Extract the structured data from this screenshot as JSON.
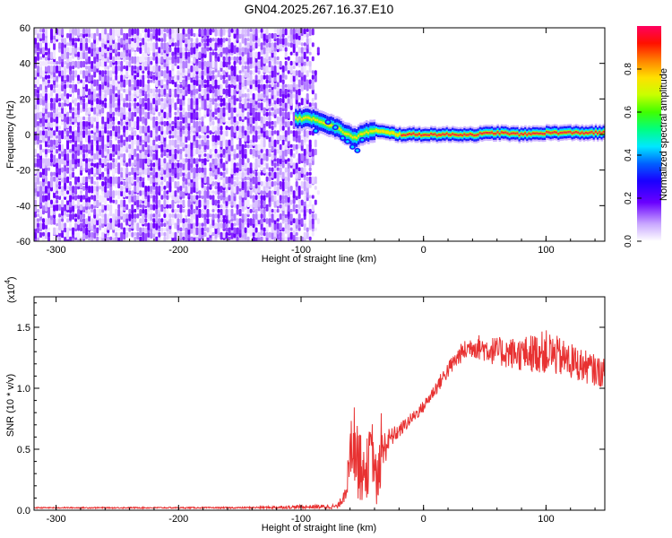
{
  "title": "GN04.2025.267.16.37.E10",
  "chart_data": [
    {
      "type": "heatmap",
      "xlabel": "Height of straight line (km)",
      "ylabel": "Frequency (Hz)",
      "xlim": [
        -318,
        148
      ],
      "ylim": [
        -60,
        60
      ],
      "xticks": [
        -300,
        -200,
        -100,
        0,
        100
      ],
      "yticks": [
        -60,
        -40,
        -20,
        0,
        20,
        40,
        60
      ],
      "noise_region_x": [
        -318,
        -82
      ],
      "signal_track": {
        "x": [
          -105,
          -90,
          -80,
          -70,
          -60,
          -55,
          -50,
          -40,
          -30,
          -20,
          -10,
          0,
          20,
          40,
          60,
          80,
          100,
          120,
          148
        ],
        "freq": [
          9,
          9,
          6,
          3,
          -1,
          -2,
          1,
          2,
          1,
          0,
          0,
          0,
          0,
          0,
          1,
          0,
          1,
          1,
          1
        ]
      },
      "colorbar": {
        "label": "Normalized spectral amplitude",
        "range": [
          0,
          1
        ],
        "ticks": [
          "0.0",
          "0.2",
          "0.4",
          "0.6",
          "0.8"
        ]
      }
    },
    {
      "type": "line",
      "xlabel": "Height of straight line (km)",
      "ylabel": "SNR (10 * v/v)",
      "scale_label": "(x10",
      "scale_exp": "4",
      "scale_close": ")",
      "xlim": [
        -318,
        148
      ],
      "ylim": [
        0,
        1.75
      ],
      "xticks": [
        -300,
        -200,
        -100,
        0,
        100
      ],
      "yticks": [
        "0.0",
        "0.5",
        "1.0",
        "1.5"
      ],
      "series": [
        {
          "name": "SNR",
          "color": "#e83232",
          "x": [
            -318,
            -150,
            -70,
            -66,
            -62,
            -58,
            -54,
            -50,
            -46,
            -42,
            -38,
            -34,
            -30,
            -26,
            -20,
            -10,
            0,
            10,
            20,
            30,
            40,
            60,
            80,
            100,
            120,
            148
          ],
          "values": [
            0.02,
            0.02,
            0.03,
            0.1,
            0.25,
            0.6,
            0.45,
            0.25,
            0.35,
            0.5,
            0.2,
            0.45,
            0.55,
            0.6,
            0.65,
            0.75,
            0.85,
            1.0,
            1.15,
            1.28,
            1.35,
            1.3,
            1.28,
            1.3,
            1.22,
            1.12
          ],
          "amplitude": [
            0.005,
            0.006,
            0.02,
            0.05,
            0.15,
            0.3,
            0.35,
            0.2,
            0.25,
            0.25,
            0.2,
            0.2,
            0.12,
            0.08,
            0.06,
            0.05,
            0.05,
            0.06,
            0.07,
            0.08,
            0.1,
            0.12,
            0.14,
            0.18,
            0.15,
            0.12
          ]
        }
      ]
    }
  ]
}
